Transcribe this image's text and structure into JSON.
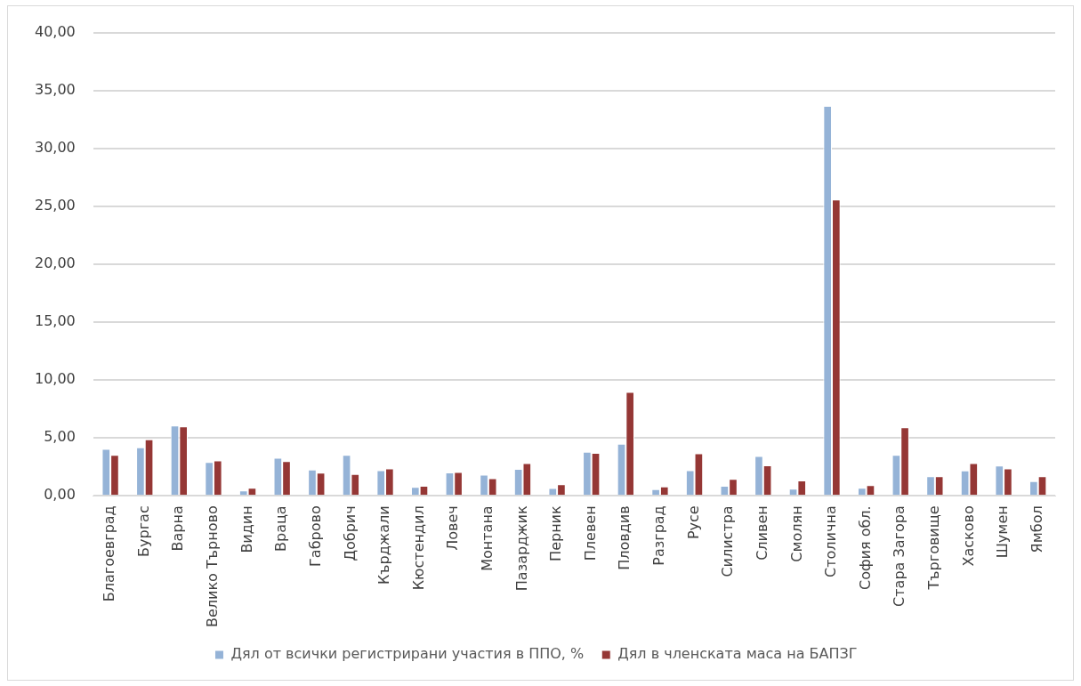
{
  "chart_data": {
    "type": "bar",
    "categories": [
      "Благоевград",
      "Бургас",
      "Варна",
      "Велико Търново",
      "Видин",
      "Враца",
      "Габрово",
      "Добрич",
      "Кърджали",
      "Кюстендил",
      "Ловеч",
      "Монтана",
      "Пазарджик",
      "Перник",
      "Плевен",
      "Пловдив",
      "Разград",
      "Русе",
      "Силистра",
      "Сливен",
      "Смолян",
      "Столична",
      "София обл.",
      "Стара Загора",
      "Търговище",
      "Хасково",
      "Шумен",
      "Ямбол"
    ],
    "series": [
      {
        "name": "Дял от всички регистрирани участия в ППО, %",
        "color": "#95b3d7",
        "values": [
          4.06,
          4.19,
          6.08,
          2.92,
          0.47,
          3.28,
          2.28,
          3.53,
          2.22,
          0.78,
          2.03,
          1.83,
          2.33,
          0.67,
          3.81,
          4.5,
          0.58,
          2.22,
          0.86,
          3.44,
          0.61,
          33.67,
          0.69,
          3.53,
          1.69,
          2.19,
          2.61,
          1.28
        ]
      },
      {
        "name": "Дял в членската маса на БАПЗГ",
        "color": "#953735",
        "values": [
          3.53,
          4.89,
          6.0,
          3.06,
          0.69,
          3.0,
          2.0,
          1.89,
          2.36,
          0.86,
          2.06,
          1.53,
          2.83,
          1.0,
          3.72,
          8.97,
          0.81,
          3.67,
          1.47,
          2.64,
          1.33,
          25.58,
          0.92,
          5.92,
          1.69,
          2.83,
          2.36,
          1.69
        ]
      }
    ],
    "ylim": [
      0,
      40
    ],
    "yticks": [
      {
        "value": 0,
        "label": "0,00"
      },
      {
        "value": 5,
        "label": "5,00"
      },
      {
        "value": 10,
        "label": "10,00"
      },
      {
        "value": 15,
        "label": "15,00"
      },
      {
        "value": 20,
        "label": "20,00"
      },
      {
        "value": 25,
        "label": "25,00"
      },
      {
        "value": 30,
        "label": "30,00"
      },
      {
        "value": 35,
        "label": "35,00"
      },
      {
        "value": 40,
        "label": "40,00"
      }
    ],
    "grid": "y",
    "legend": "bottom"
  }
}
